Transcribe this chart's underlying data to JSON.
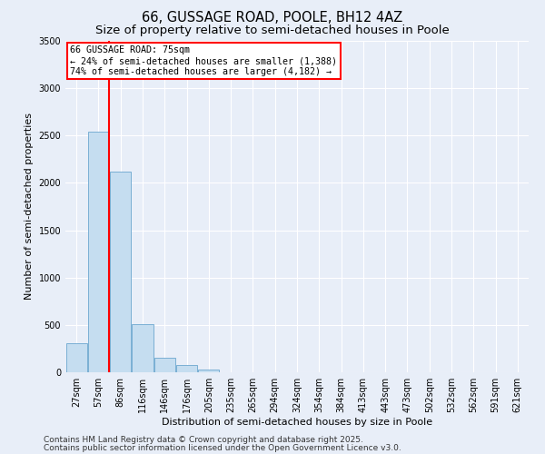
{
  "title": "66, GUSSAGE ROAD, POOLE, BH12 4AZ",
  "subtitle": "Size of property relative to semi-detached houses in Poole",
  "xlabel": "Distribution of semi-detached houses by size in Poole",
  "ylabel": "Number of semi-detached properties",
  "bins": [
    "27sqm",
    "57sqm",
    "86sqm",
    "116sqm",
    "146sqm",
    "176sqm",
    "205sqm",
    "235sqm",
    "265sqm",
    "294sqm",
    "324sqm",
    "354sqm",
    "384sqm",
    "413sqm",
    "443sqm",
    "473sqm",
    "502sqm",
    "532sqm",
    "562sqm",
    "591sqm",
    "621sqm"
  ],
  "values": [
    310,
    2540,
    2120,
    510,
    155,
    80,
    30,
    0,
    0,
    0,
    0,
    0,
    0,
    0,
    0,
    0,
    0,
    0,
    0,
    0,
    0
  ],
  "bar_color": "#c5ddf0",
  "bar_edge_color": "#7aafd4",
  "red_line_bin_index": 1,
  "annotation_title": "66 GUSSAGE ROAD: 75sqm",
  "annotation_line1": "← 24% of semi-detached houses are smaller (1,388)",
  "annotation_line2": "74% of semi-detached houses are larger (4,182) →",
  "ylim": [
    0,
    3500
  ],
  "yticks": [
    0,
    500,
    1000,
    1500,
    2000,
    2500,
    3000,
    3500
  ],
  "bg_color": "#e8eef8",
  "plot_bg_color": "#e8eef8",
  "footer_line1": "Contains HM Land Registry data © Crown copyright and database right 2025.",
  "footer_line2": "Contains public sector information licensed under the Open Government Licence v3.0.",
  "title_fontsize": 10.5,
  "subtitle_fontsize": 9.5,
  "axis_label_fontsize": 8,
  "tick_fontsize": 7,
  "footer_fontsize": 6.5
}
